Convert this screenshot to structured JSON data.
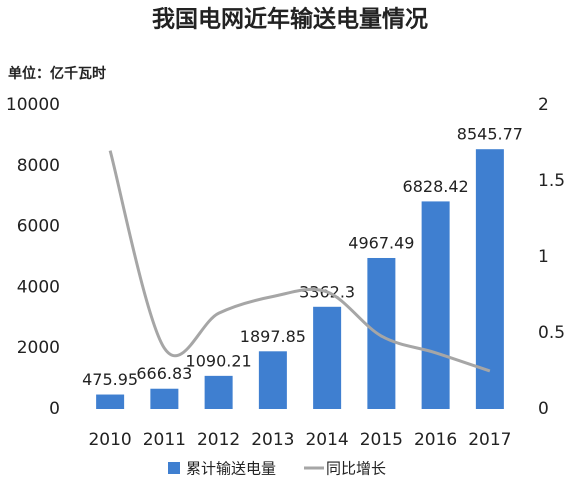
{
  "chart_data": {
    "type": "combo",
    "title": "我国电网近年输送电量情况",
    "unit_label": "单位：亿千瓦时",
    "categories": [
      "2010",
      "2011",
      "2012",
      "2013",
      "2014",
      "2015",
      "2016",
      "2017"
    ],
    "series": [
      {
        "name": "累计输送电量",
        "type": "bar",
        "color": "#3f7fd0",
        "values": [
          475.95,
          666.83,
          1090.21,
          1897.85,
          3362.3,
          4967.49,
          6828.42,
          8545.77
        ]
      },
      {
        "name": "同比增长",
        "type": "line",
        "axis": "y2",
        "color": "#a6a6a6",
        "values": [
          1.7,
          0.4,
          0.63,
          0.74,
          0.77,
          0.48,
          0.37,
          0.25
        ]
      }
    ],
    "ylim": [
      0,
      10000
    ],
    "yticks": [
      0,
      2000,
      4000,
      6000,
      8000,
      10000
    ],
    "y2lim": [
      0,
      2
    ],
    "y2ticks": [
      0,
      0.5,
      1,
      1.5,
      2
    ],
    "legend": "bottom"
  }
}
